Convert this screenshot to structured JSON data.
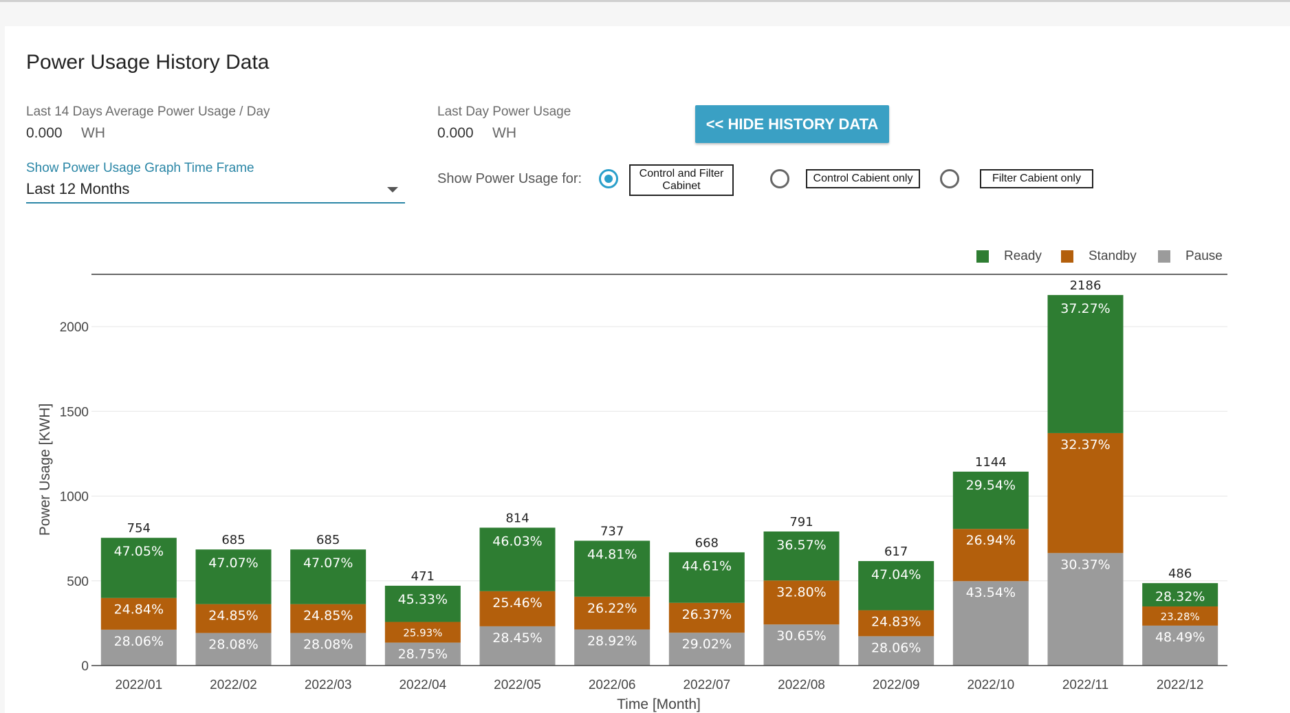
{
  "page": {
    "title": "Power Usage History Data",
    "avg_label": "Last 14 Days Average Power Usage / Day",
    "avg_value": "0.000",
    "avg_unit": "WH",
    "lastday_label": "Last Day Power Usage",
    "lastday_value": "0.000",
    "lastday_unit": "WH",
    "hide_button": "<< HIDE HISTORY DATA",
    "timeframe_label": "Show Power Usage Graph Time Frame",
    "timeframe_value": "Last 12 Months",
    "show_for_label": "Show Power Usage for:",
    "radio_options": [
      {
        "label": "Control and Filter Cabinet",
        "checked": true
      },
      {
        "label": "Control Cabient only",
        "checked": false
      },
      {
        "label": "Filter Cabient only",
        "checked": false
      }
    ]
  },
  "colors": {
    "ready": "#2e7d32",
    "standby": "#b35f0c",
    "pause": "#9b9b9b",
    "accent": "#3aa0c4"
  },
  "chart_data": {
    "type": "bar",
    "stacked": true,
    "xlabel": "Time [Month]",
    "ylabel": "Power Usage [KWH]",
    "ylim": [
      0,
      2200
    ],
    "yticks": [
      0,
      500,
      1000,
      1500,
      2000
    ],
    "grid": true,
    "legend_position": "top-right",
    "categories": [
      "2022/01",
      "2022/02",
      "2022/03",
      "2022/04",
      "2022/05",
      "2022/06",
      "2022/07",
      "2022/08",
      "2022/09",
      "2022/10",
      "2022/11",
      "2022/12"
    ],
    "totals": [
      754,
      685,
      685,
      471,
      814,
      737,
      668,
      791,
      617,
      1144,
      2186,
      486
    ],
    "series": [
      {
        "name": "Pause",
        "color": "#9b9b9b",
        "percent_labels": [
          "28.06%",
          "28.08%",
          "28.08%",
          "28.75%",
          "28.45%",
          "28.92%",
          "29.02%",
          "30.65%",
          "28.06%",
          "43.54%",
          "30.37%",
          "48.49%"
        ],
        "values": [
          211.6,
          192.3,
          192.3,
          135.4,
          231.6,
          213.1,
          193.9,
          242.4,
          173.1,
          498.1,
          663.9,
          235.7
        ]
      },
      {
        "name": "Standby",
        "color": "#b35f0c",
        "percent_labels": [
          "24.84%",
          "24.85%",
          "24.85%",
          "25.93%",
          "25.46%",
          "26.22%",
          "26.37%",
          "32.80%",
          "24.83%",
          "26.94%",
          "32.37%",
          "23.28%"
        ],
        "values": [
          187.3,
          170.2,
          170.2,
          122.1,
          207.2,
          193.2,
          176.2,
          259.4,
          153.2,
          308.2,
          707.6,
          113.1
        ]
      },
      {
        "name": "Ready",
        "color": "#2e7d32",
        "percent_labels": [
          "47.05%",
          "47.07%",
          "47.07%",
          "45.33%",
          "46.03%",
          "44.81%",
          "44.61%",
          "36.57%",
          "47.04%",
          "29.54%",
          "37.27%",
          "28.32%"
        ],
        "values": [
          354.8,
          322.4,
          322.4,
          213.5,
          374.7,
          330.2,
          298.0,
          289.3,
          290.2,
          337.9,
          814.7,
          137.6
        ]
      }
    ]
  }
}
